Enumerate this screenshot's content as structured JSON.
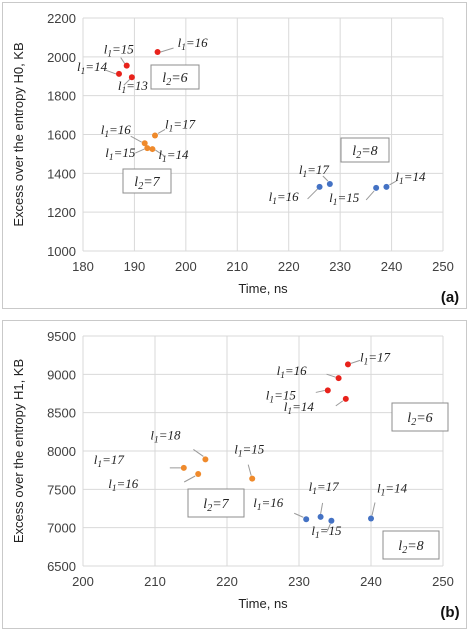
{
  "chart_data": [
    {
      "type": "scatter",
      "panel_label": "(a)",
      "xlabel": "Time, ns",
      "ylabel": "Excess over the entropy H0, KB",
      "xlim": [
        180,
        250
      ],
      "ylim": [
        1000,
        2200
      ],
      "x_ticks": [
        180,
        190,
        200,
        210,
        220,
        230,
        240,
        250
      ],
      "y_ticks": [
        1000,
        1200,
        1400,
        1600,
        1800,
        2000,
        2200
      ],
      "grid": true,
      "series": [
        {
          "group": "l2=6",
          "color": "#e8221b",
          "points": [
            {
              "label": "l1=15",
              "x": 188.5,
              "y": 1955
            },
            {
              "label": "l1=16",
              "x": 194.5,
              "y": 2025
            },
            {
              "label": "l1=14",
              "x": 187.0,
              "y": 1912
            },
            {
              "label": "l1=13",
              "x": 189.5,
              "y": 1895
            }
          ]
        },
        {
          "group": "l2=7",
          "color": "#ef8a2c",
          "points": [
            {
              "label": "l1=16",
              "x": 192.0,
              "y": 1555
            },
            {
              "label": "l1=17",
              "x": 194.0,
              "y": 1595
            },
            {
              "label": "l1=15",
              "x": 192.5,
              "y": 1530
            },
            {
              "label": "l1=14",
              "x": 193.5,
              "y": 1525
            }
          ]
        },
        {
          "group": "l2=8",
          "color": "#4472c4",
          "points": [
            {
              "label": "l1=17",
              "x": 228.0,
              "y": 1345
            },
            {
              "label": "l1=16",
              "x": 226.0,
              "y": 1330
            },
            {
              "label": "l1=14",
              "x": 239.0,
              "y": 1330
            },
            {
              "label": "l1=15",
              "x": 237.0,
              "y": 1325
            }
          ]
        }
      ],
      "groups": [
        "l2=6",
        "l2=7",
        "l2=8"
      ]
    },
    {
      "type": "scatter",
      "panel_label": "(b)",
      "xlabel": "Time, ns",
      "ylabel": "Excess over the entropy H1, KB",
      "xlim": [
        200,
        250
      ],
      "ylim": [
        6500,
        9500
      ],
      "x_ticks": [
        200,
        210,
        220,
        230,
        240,
        250
      ],
      "y_ticks": [
        6500,
        7000,
        7500,
        8000,
        8500,
        9000,
        9500
      ],
      "grid": true,
      "series": [
        {
          "group": "l2=6",
          "color": "#e8221b",
          "points": [
            {
              "label": "l1=17",
              "x": 236.8,
              "y": 9130
            },
            {
              "label": "l1=16",
              "x": 235.5,
              "y": 8950
            },
            {
              "label": "l1=15",
              "x": 234.0,
              "y": 8790
            },
            {
              "label": "l1=14",
              "x": 236.5,
              "y": 8680
            }
          ]
        },
        {
          "group": "l2=7",
          "color": "#ef8a2c",
          "points": [
            {
              "label": "l1=18",
              "x": 217.0,
              "y": 7890
            },
            {
              "label": "l1=17",
              "x": 214.0,
              "y": 7780
            },
            {
              "label": "l1=16",
              "x": 216.0,
              "y": 7700
            },
            {
              "label": "l1=15",
              "x": 223.5,
              "y": 7640
            }
          ]
        },
        {
          "group": "l2=8",
          "color": "#4472c4",
          "points": [
            {
              "label": "l1=16",
              "x": 231.0,
              "y": 7110
            },
            {
              "label": "l1=17",
              "x": 233.0,
              "y": 7140
            },
            {
              "label": "l1=15",
              "x": 234.5,
              "y": 7090
            },
            {
              "label": "l1=14",
              "x": 240.0,
              "y": 7120
            }
          ]
        }
      ],
      "groups": [
        "l2=6",
        "l2=7",
        "l2=8"
      ]
    }
  ]
}
